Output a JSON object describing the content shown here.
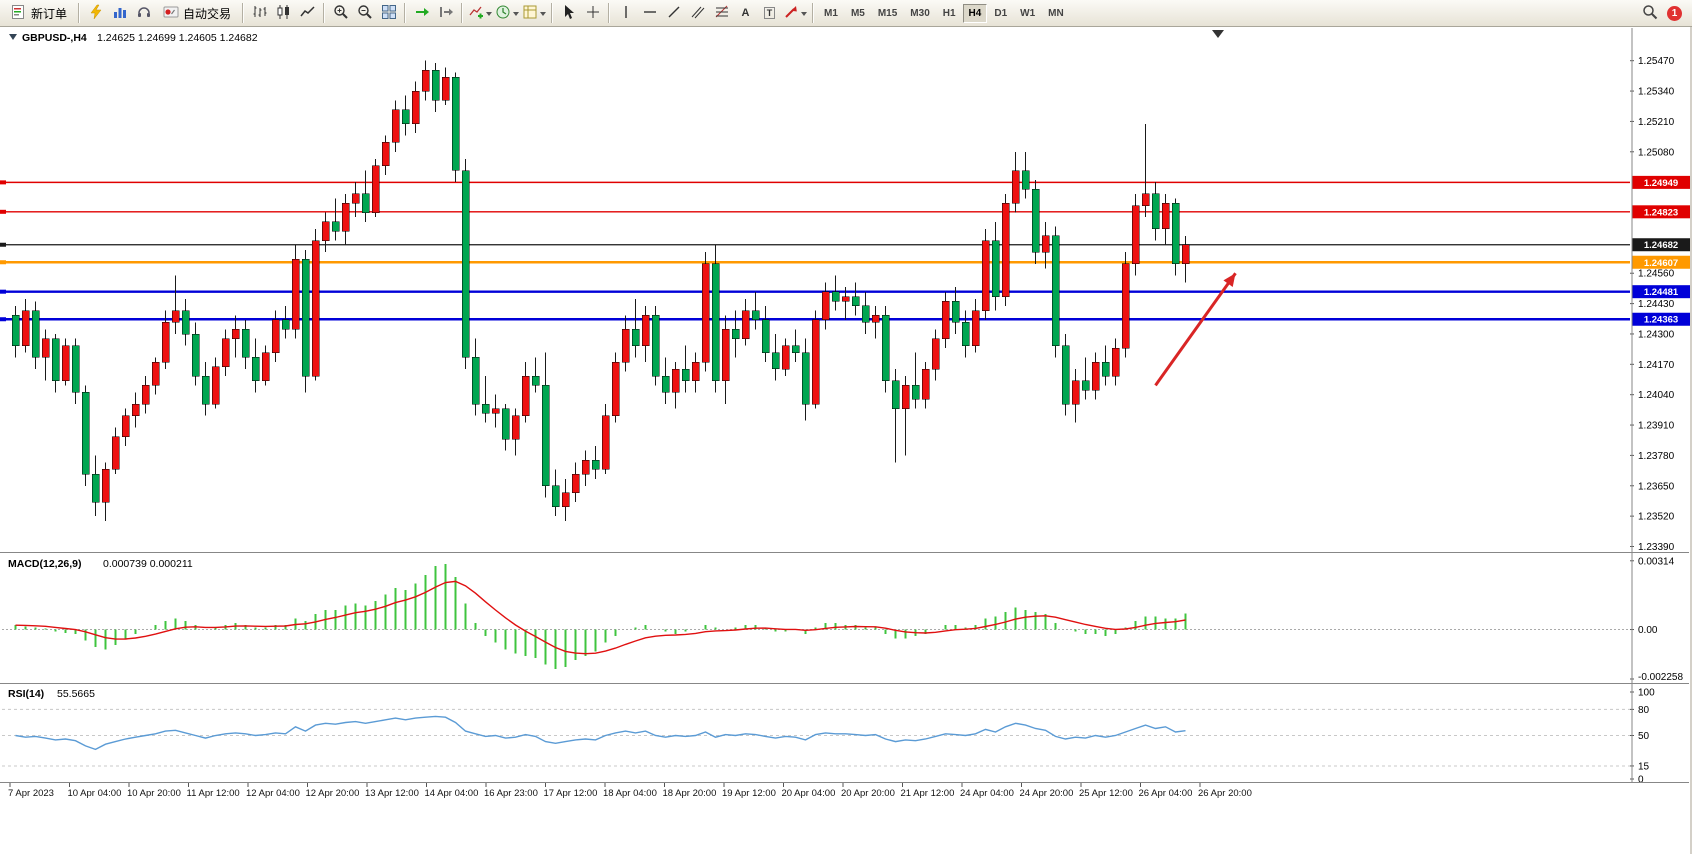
{
  "toolbar": {
    "new_order_label": "新订单",
    "auto_trading_label": "自动交易",
    "text_tool_glyph": "A",
    "label_tool_glyph": "T",
    "timeframes": [
      "M1",
      "M5",
      "M15",
      "M30",
      "H1",
      "H4",
      "D1",
      "W1",
      "MN"
    ],
    "active_timeframe": "H4",
    "notification_count": "1"
  },
  "chart_header": {
    "symbol_title": "GBPUSD-,H4",
    "ohlc_text": "1.24625 1.24699 1.24605 1.24682"
  },
  "macd_panel": {
    "title": "MACD(12,26,9)",
    "values": "0.000739 0.000211"
  },
  "rsi_panel": {
    "title": "RSI(14)",
    "value": "55.5665"
  },
  "chart_data": [
    {
      "type": "candlestick",
      "symbol": "GBPUSD-",
      "period": "H4",
      "ohlc": {
        "open": 1.24625,
        "high": 1.24699,
        "low": 1.24605,
        "close": 1.24682
      },
      "ylim": [
        1.23375,
        1.2561
      ],
      "y_ticks": [
        "1.25470",
        "1.25340",
        "1.25210",
        "1.25080",
        "1.24560",
        "1.24430",
        "1.24300",
        "1.24170",
        "1.24040",
        "1.23910",
        "1.23780",
        "1.23650",
        "1.23520",
        "1.23390"
      ],
      "price_lines": [
        {
          "label": "1.24949",
          "price": 1.24949,
          "color": "#E00000",
          "width": 1.4
        },
        {
          "label": "1.24823",
          "price": 1.24823,
          "color": "#E00000",
          "width": 1.4
        },
        {
          "label": "1.24682",
          "price": 1.24682,
          "color": "#1A1A1A",
          "width": 1.2,
          "role": "current-price"
        },
        {
          "label": "1.24607",
          "price": 1.24607,
          "color": "#FF9900",
          "width": 2.4
        },
        {
          "label": "1.24481",
          "price": 1.24481,
          "color": "#0000D8",
          "width": 2.4
        },
        {
          "label": "1.24363",
          "price": 1.24363,
          "color": "#0000D8",
          "width": 2.4
        }
      ],
      "colors": {
        "up": "#EE1111",
        "down": "#00A651",
        "wick": "#1A1A1A"
      },
      "arrow": {
        "from_candle": 114,
        "from_price": 1.2408,
        "to_candle": 122,
        "to_price": 1.2456,
        "color": "#D92525"
      },
      "x_labels": [
        "7 Apr 2023",
        "10 Apr 04:00",
        "10 Apr 20:00",
        "11 Apr 12:00",
        "12 Apr 04:00",
        "12 Apr 20:00",
        "13 Apr 12:00",
        "14 Apr 04:00",
        "16 Apr 23:00",
        "17 Apr 12:00",
        "18 Apr 04:00",
        "18 Apr 20:00",
        "19 Apr 12:00",
        "20 Apr 04:00",
        "20 Apr 20:00",
        "21 Apr 12:00",
        "24 Apr 04:00",
        "24 Apr 20:00",
        "25 Apr 12:00",
        "26 Apr 04:00",
        "26 Apr 20:00"
      ],
      "candles": [
        [
          1.2438,
          1.2442,
          1.242,
          1.2425
        ],
        [
          1.2425,
          1.2445,
          1.2422,
          1.244
        ],
        [
          1.244,
          1.2444,
          1.2415,
          1.242
        ],
        [
          1.242,
          1.2432,
          1.241,
          1.2428
        ],
        [
          1.2428,
          1.243,
          1.2405,
          1.241
        ],
        [
          1.241,
          1.2428,
          1.2408,
          1.2425
        ],
        [
          1.2425,
          1.2428,
          1.24,
          1.2405
        ],
        [
          1.2405,
          1.2408,
          1.2365,
          1.237
        ],
        [
          1.237,
          1.2378,
          1.2352,
          1.2358
        ],
        [
          1.2358,
          1.2375,
          1.235,
          1.2372
        ],
        [
          1.2372,
          1.239,
          1.237,
          1.2386
        ],
        [
          1.2386,
          1.2398,
          1.2382,
          1.2395
        ],
        [
          1.2395,
          1.2405,
          1.239,
          1.24
        ],
        [
          1.24,
          1.2412,
          1.2396,
          1.2408
        ],
        [
          1.2408,
          1.242,
          1.2404,
          1.2418
        ],
        [
          1.2418,
          1.244,
          1.2415,
          1.2435
        ],
        [
          1.2435,
          1.2455,
          1.243,
          1.244
        ],
        [
          1.244,
          1.2445,
          1.2425,
          1.243
        ],
        [
          1.243,
          1.2435,
          1.2408,
          1.2412
        ],
        [
          1.2412,
          1.2418,
          1.2395,
          1.24
        ],
        [
          1.24,
          1.242,
          1.2398,
          1.2416
        ],
        [
          1.2416,
          1.2432,
          1.2412,
          1.2428
        ],
        [
          1.2428,
          1.2438,
          1.242,
          1.2432
        ],
        [
          1.2432,
          1.2436,
          1.2415,
          1.242
        ],
        [
          1.242,
          1.2428,
          1.2405,
          1.241
        ],
        [
          1.241,
          1.2425,
          1.2408,
          1.2422
        ],
        [
          1.2422,
          1.244,
          1.2418,
          1.2436
        ],
        [
          1.2436,
          1.2442,
          1.2428,
          1.2432
        ],
        [
          1.2432,
          1.2468,
          1.2428,
          1.2462
        ],
        [
          1.2462,
          1.2466,
          1.2405,
          1.2412
        ],
        [
          1.2412,
          1.2475,
          1.241,
          1.247
        ],
        [
          1.247,
          1.2482,
          1.2465,
          1.2478
        ],
        [
          1.2478,
          1.2488,
          1.247,
          1.2474
        ],
        [
          1.2474,
          1.249,
          1.2468,
          1.2486
        ],
        [
          1.2486,
          1.2495,
          1.248,
          1.249
        ],
        [
          1.249,
          1.25,
          1.2478,
          1.2482
        ],
        [
          1.2482,
          1.2505,
          1.248,
          1.2502
        ],
        [
          1.2502,
          1.2515,
          1.2498,
          1.2512
        ],
        [
          1.2512,
          1.253,
          1.2508,
          1.2526
        ],
        [
          1.2526,
          1.2532,
          1.2515,
          1.252
        ],
        [
          1.252,
          1.2538,
          1.2516,
          1.2534
        ],
        [
          1.2534,
          1.2547,
          1.253,
          1.2543
        ],
        [
          1.2543,
          1.2546,
          1.2525,
          1.253
        ],
        [
          1.253,
          1.2544,
          1.2528,
          1.254
        ],
        [
          1.254,
          1.2542,
          1.2495,
          1.25
        ],
        [
          1.25,
          1.2505,
          1.2415,
          1.242
        ],
        [
          1.242,
          1.2428,
          1.2395,
          1.24
        ],
        [
          1.24,
          1.2412,
          1.2392,
          1.2396
        ],
        [
          1.2396,
          1.2404,
          1.239,
          1.2398
        ],
        [
          1.2398,
          1.24,
          1.238,
          1.2385
        ],
        [
          1.2385,
          1.2398,
          1.2378,
          1.2395
        ],
        [
          1.2395,
          1.2418,
          1.2392,
          1.2412
        ],
        [
          1.2412,
          1.242,
          1.2405,
          1.2408
        ],
        [
          1.2408,
          1.2422,
          1.236,
          1.2365
        ],
        [
          1.2365,
          1.2372,
          1.2352,
          1.2356
        ],
        [
          1.2356,
          1.2368,
          1.235,
          1.2362
        ],
        [
          1.2362,
          1.2375,
          1.2358,
          1.237
        ],
        [
          1.237,
          1.238,
          1.2365,
          1.2376
        ],
        [
          1.2376,
          1.2382,
          1.2368,
          1.2372
        ],
        [
          1.2372,
          1.24,
          1.237,
          1.2395
        ],
        [
          1.2395,
          1.2422,
          1.2392,
          1.2418
        ],
        [
          1.2418,
          1.2438,
          1.2414,
          1.2432
        ],
        [
          1.2432,
          1.2445,
          1.242,
          1.2425
        ],
        [
          1.2425,
          1.2442,
          1.2418,
          1.2438
        ],
        [
          1.2438,
          1.2442,
          1.2408,
          1.2412
        ],
        [
          1.2412,
          1.242,
          1.24,
          1.2405
        ],
        [
          1.2405,
          1.2418,
          1.2398,
          1.2415
        ],
        [
          1.2415,
          1.2425,
          1.2405,
          1.241
        ],
        [
          1.241,
          1.2422,
          1.2405,
          1.2418
        ],
        [
          1.2418,
          1.2465,
          1.2414,
          1.246
        ],
        [
          1.246,
          1.2468,
          1.2405,
          1.241
        ],
        [
          1.241,
          1.2438,
          1.24,
          1.2432
        ],
        [
          1.2432,
          1.244,
          1.242,
          1.2428
        ],
        [
          1.2428,
          1.2445,
          1.2425,
          1.244
        ],
        [
          1.244,
          1.2448,
          1.2432,
          1.2436
        ],
        [
          1.2436,
          1.2442,
          1.2418,
          1.2422
        ],
        [
          1.2422,
          1.243,
          1.241,
          1.2415
        ],
        [
          1.2415,
          1.2428,
          1.2412,
          1.2425
        ],
        [
          1.2425,
          1.2432,
          1.2418,
          1.2422
        ],
        [
          1.2422,
          1.2428,
          1.2393,
          1.24
        ],
        [
          1.24,
          1.244,
          1.2398,
          1.2436
        ],
        [
          1.2436,
          1.2452,
          1.2432,
          1.2448
        ],
        [
          1.2448,
          1.2455,
          1.244,
          1.2444
        ],
        [
          1.2444,
          1.245,
          1.2436,
          1.2446
        ],
        [
          1.2446,
          1.2452,
          1.2438,
          1.2442
        ],
        [
          1.2442,
          1.2448,
          1.243,
          1.2435
        ],
        [
          1.2435,
          1.2442,
          1.2428,
          1.2438
        ],
        [
          1.2438,
          1.2442,
          1.2405,
          1.241
        ],
        [
          1.241,
          1.2415,
          1.2375,
          1.2398
        ],
        [
          1.2398,
          1.2412,
          1.2378,
          1.2408
        ],
        [
          1.2408,
          1.2422,
          1.2398,
          1.2402
        ],
        [
          1.2402,
          1.2418,
          1.2398,
          1.2415
        ],
        [
          1.2415,
          1.2432,
          1.241,
          1.2428
        ],
        [
          1.2428,
          1.2448,
          1.2424,
          1.2444
        ],
        [
          1.2444,
          1.245,
          1.243,
          1.2435
        ],
        [
          1.2435,
          1.244,
          1.242,
          1.2425
        ],
        [
          1.2425,
          1.2445,
          1.2422,
          1.244
        ],
        [
          1.244,
          1.2475,
          1.2436,
          1.247
        ],
        [
          1.247,
          1.2478,
          1.244,
          1.2446
        ],
        [
          1.2446,
          1.249,
          1.2442,
          1.2486
        ],
        [
          1.2486,
          1.2508,
          1.2482,
          1.25
        ],
        [
          1.25,
          1.2508,
          1.2488,
          1.2492
        ],
        [
          1.2492,
          1.2496,
          1.246,
          1.2465
        ],
        [
          1.2465,
          1.2478,
          1.2458,
          1.2472
        ],
        [
          1.2472,
          1.2476,
          1.242,
          1.2425
        ],
        [
          1.2425,
          1.243,
          1.2395,
          1.24
        ],
        [
          1.24,
          1.2415,
          1.2392,
          1.241
        ],
        [
          1.241,
          1.242,
          1.2402,
          1.2406
        ],
        [
          1.2406,
          1.2422,
          1.2402,
          1.2418
        ],
        [
          1.2418,
          1.2425,
          1.2408,
          1.2412
        ],
        [
          1.2412,
          1.2428,
          1.2408,
          1.2424
        ],
        [
          1.2424,
          1.2465,
          1.242,
          1.246
        ],
        [
          1.246,
          1.249,
          1.2455,
          1.2485
        ],
        [
          1.2485,
          1.252,
          1.248,
          1.249
        ],
        [
          1.249,
          1.2495,
          1.247,
          1.2475
        ],
        [
          1.2475,
          1.249,
          1.2468,
          1.2486
        ],
        [
          1.2486,
          1.2488,
          1.2455,
          1.246
        ],
        [
          1.246,
          1.2472,
          1.2452,
          1.24682
        ]
      ]
    },
    {
      "type": "macd",
      "ylim": [
        -0.00235,
        0.00345
      ],
      "y_ticks": [
        {
          "label": "0.00314",
          "value": 0.00314
        },
        {
          "label": "0.00",
          "value": 0
        },
        {
          "label": "-0.002258",
          "value": -0.002258
        }
      ],
      "signal_period": 9,
      "colors": {
        "histogram": "#3FC43F",
        "signal": "#E01010"
      },
      "histogram": [
        0.0002,
        0.00015,
        0.0001,
        5e-05,
        -0.0001,
        -0.00015,
        -0.0002,
        -0.0005,
        -0.0008,
        -0.0009,
        -0.0007,
        -0.0004,
        -0.0002,
        0,
        0.0002,
        0.0004,
        0.0005,
        0.0004,
        0.0002,
        0,
        0.0001,
        0.0002,
        0.0003,
        0.0002,
        0.0001,
        0.0001,
        0.0002,
        0.0002,
        0.0005,
        0.0004,
        0.0007,
        0.0009,
        0.0009,
        0.0011,
        0.0012,
        0.0011,
        0.0013,
        0.0016,
        0.0019,
        0.0018,
        0.0021,
        0.0025,
        0.0029,
        0.003,
        0.0024,
        0.0012,
        0.0003,
        -0.0003,
        -0.0006,
        -0.0009,
        -0.0011,
        -0.0012,
        -0.0013,
        -0.0016,
        -0.0018,
        -0.0017,
        -0.0014,
        -0.0012,
        -0.001,
        -0.0006,
        -0.0003,
        0,
        0.0001,
        0.0002,
        0,
        -0.0001,
        -0.0002,
        -0.0001,
        0,
        0.0002,
        0.0001,
        0,
        0.0001,
        0.0002,
        0.0002,
        0.0001,
        -0.0001,
        -0.0001,
        0,
        -0.0002,
        0.0001,
        0.0003,
        0.0003,
        0.0002,
        0.0002,
        0.0001,
        0.0001,
        -0.0002,
        -0.0004,
        -0.0004,
        -0.0003,
        -0.0002,
        0,
        0.0002,
        0.0002,
        0.0001,
        0.0002,
        0.0005,
        0.0006,
        0.0008,
        0.001,
        0.0009,
        0.0008,
        0.0007,
        0.0003,
        0,
        -0.0001,
        -0.0002,
        -0.0002,
        -0.0003,
        -0.0002,
        0.0001,
        0.0004,
        0.0006,
        0.0006,
        0.0005,
        0.0005,
        0.00074
      ]
    },
    {
      "type": "rsi",
      "ylim": [
        0,
        100
      ],
      "y_ticks": [
        {
          "label": "100",
          "value": 100
        },
        {
          "label": "80",
          "value": 80
        },
        {
          "label": "50",
          "value": 50
        },
        {
          "label": "15",
          "value": 15
        },
        {
          "label": "0",
          "value": 0
        }
      ],
      "levels": [
        80,
        50,
        15
      ],
      "color": "#5B9BD5",
      "values": [
        50,
        48,
        49,
        47,
        45,
        46,
        44,
        38,
        34,
        40,
        43,
        46,
        48,
        50,
        52,
        55,
        56,
        53,
        50,
        47,
        50,
        52,
        53,
        52,
        50,
        51,
        53,
        52,
        60,
        55,
        62,
        64,
        63,
        65,
        66,
        64,
        66,
        68,
        70,
        68,
        70,
        71,
        72,
        71,
        65,
        55,
        52,
        49,
        50,
        47,
        48,
        51,
        49,
        43,
        41,
        43,
        45,
        46,
        45,
        50,
        53,
        55,
        53,
        55,
        50,
        48,
        50,
        49,
        50,
        54,
        48,
        51,
        50,
        52,
        51,
        49,
        47,
        49,
        48,
        45,
        51,
        53,
        52,
        52,
        51,
        50,
        51,
        46,
        43,
        45,
        44,
        46,
        49,
        52,
        51,
        50,
        52,
        57,
        54,
        60,
        64,
        62,
        58,
        56,
        49,
        46,
        48,
        47,
        50,
        48,
        50,
        54,
        58,
        62,
        58,
        60,
        54,
        55.57
      ]
    }
  ]
}
